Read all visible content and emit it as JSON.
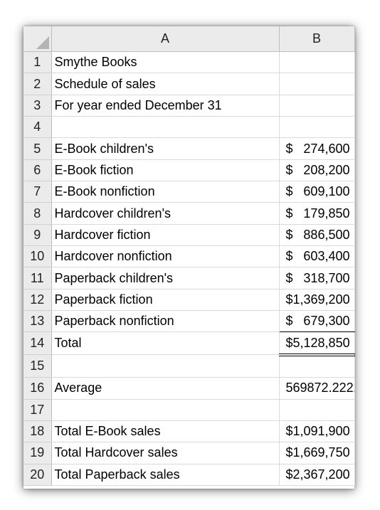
{
  "columns": {
    "a": "A",
    "b": "B"
  },
  "rows": [
    {
      "num": "1",
      "label": "Smythe Books",
      "dollar": "",
      "value": ""
    },
    {
      "num": "2",
      "label": "Schedule of sales",
      "dollar": "",
      "value": ""
    },
    {
      "num": "3",
      "label": "For year ended December 31",
      "dollar": "",
      "value": ""
    },
    {
      "num": "4",
      "label": "",
      "dollar": "",
      "value": ""
    },
    {
      "num": "5",
      "label": "E-Book children's",
      "dollar": "$",
      "value": "274,600"
    },
    {
      "num": "6",
      "label": "E-Book fiction",
      "dollar": "$",
      "value": "208,200"
    },
    {
      "num": "7",
      "label": "E-Book nonfiction",
      "dollar": "$",
      "value": "609,100"
    },
    {
      "num": "8",
      "label": "Hardcover children's",
      "dollar": "$",
      "value": "179,850"
    },
    {
      "num": "9",
      "label": "Hardcover fiction",
      "dollar": "$",
      "value": "886,500"
    },
    {
      "num": "10",
      "label": "Hardcover nonfiction",
      "dollar": "$",
      "value": "603,400"
    },
    {
      "num": "11",
      "label": "Paperback children's",
      "dollar": "$",
      "value": "318,700"
    },
    {
      "num": "12",
      "label": "Paperback fiction",
      "dollar": "$",
      "value": "1,369,200"
    },
    {
      "num": "13",
      "label": "Paperback nonfiction",
      "dollar": "$",
      "value": "679,300"
    },
    {
      "num": "14",
      "label": "Total",
      "dollar": "$",
      "value": "5,128,850"
    },
    {
      "num": "15",
      "label": "",
      "dollar": "",
      "value": ""
    },
    {
      "num": "16",
      "label": "Average",
      "dollar": "",
      "value": "569872.2222"
    },
    {
      "num": "17",
      "label": "",
      "dollar": "",
      "value": ""
    },
    {
      "num": "18",
      "label": "Total E-Book sales",
      "dollar": "$",
      "value": "1,091,900"
    },
    {
      "num": "19",
      "label": "Total Hardcover sales",
      "dollar": "$",
      "value": "1,669,750"
    },
    {
      "num": "20",
      "label": "Total Paperback sales",
      "dollar": "$",
      "value": "2,367,200"
    }
  ]
}
